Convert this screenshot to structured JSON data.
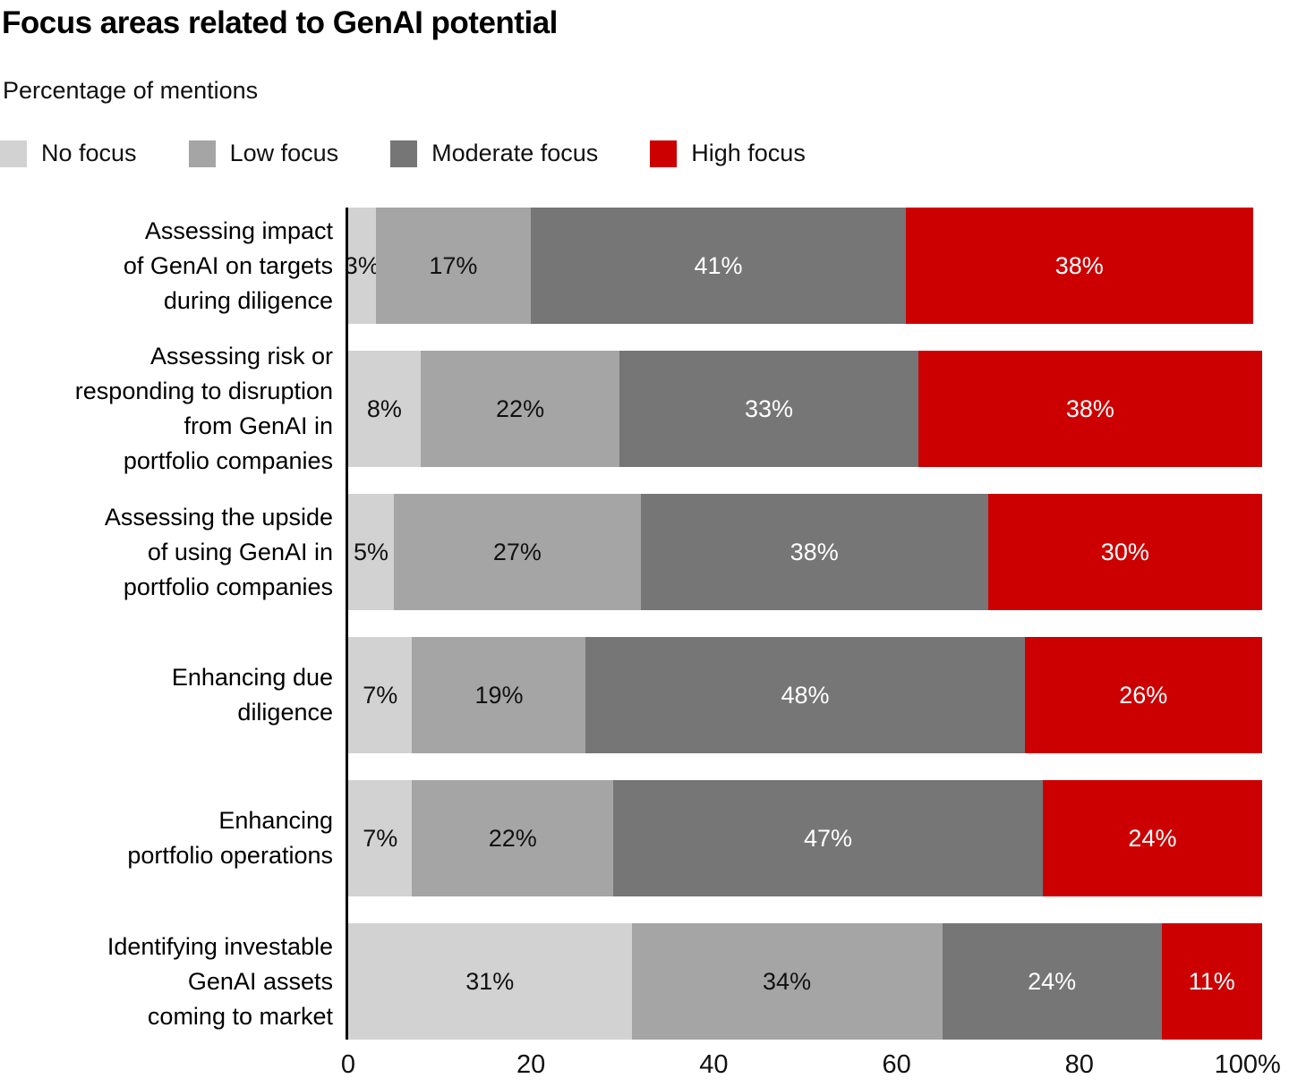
{
  "chart_data": {
    "type": "bar",
    "variant": "horizontal-stacked",
    "title": "Focus areas related to GenAI potential",
    "subtitle": "Percentage of mentions",
    "categories": [
      "Assessing impact\nof GenAI on targets\nduring diligence",
      "Assessing risk or\nresponding to disruption\nfrom GenAI in\nportfolio companies",
      "Assessing the upside\nof using GenAI in\nportfolio companies",
      "Enhancing due\ndiligence",
      "Enhancing\nportfolio operations",
      "Identifying investable\nGenAI assets\ncoming to market"
    ],
    "series": [
      {
        "name": "No focus",
        "color": "#d2d2d2",
        "label_color": "#111111",
        "values": [
          3,
          8,
          5,
          7,
          7,
          31
        ]
      },
      {
        "name": "Low focus",
        "color": "#a5a5a5",
        "label_color": "#111111",
        "values": [
          17,
          22,
          27,
          19,
          22,
          34
        ]
      },
      {
        "name": "Moderate focus",
        "color": "#767676",
        "label_color": "#ffffff",
        "values": [
          41,
          33,
          38,
          48,
          47,
          24
        ]
      },
      {
        "name": "High focus",
        "color": "#cc0000",
        "label_color": "#ffffff",
        "values": [
          38,
          38,
          30,
          26,
          24,
          11
        ]
      }
    ],
    "value_suffix": "%",
    "xlim": [
      0,
      100
    ],
    "x_ticks": [
      {
        "value": 0,
        "label": "0"
      },
      {
        "value": 20,
        "label": "20"
      },
      {
        "value": 40,
        "label": "40"
      },
      {
        "value": 60,
        "label": "60"
      },
      {
        "value": 80,
        "label": "80"
      },
      {
        "value": 100,
        "label": "100%"
      }
    ],
    "legend_position": "top",
    "grid": false,
    "axis_color": "#000000",
    "background": "#ffffff"
  }
}
